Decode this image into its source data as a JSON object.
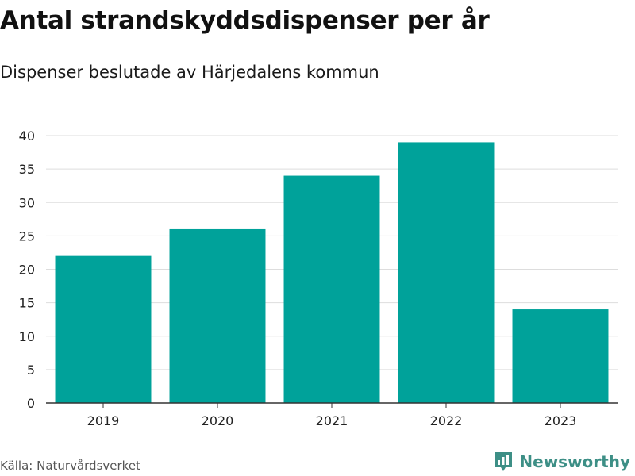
{
  "chart_data": {
    "type": "bar",
    "title": "Antal strandskyddsdispenser per år",
    "subtitle": "Dispenser beslutade av Härjedalens kommun",
    "categories": [
      "2019",
      "2020",
      "2021",
      "2022",
      "2023"
    ],
    "values": [
      22,
      26,
      34,
      39,
      14
    ],
    "xlabel": "",
    "ylabel": "",
    "ylim": [
      0,
      40
    ],
    "yticks": [
      0,
      5,
      10,
      15,
      20,
      25,
      30,
      35,
      40
    ],
    "grid": true,
    "bar_color": "#00a29a",
    "source": "Källa: Naturvårdsverket"
  },
  "brand": {
    "name": "Newsworthy",
    "color": "#3d8f86",
    "icon": "newsworthy-logo-icon"
  }
}
